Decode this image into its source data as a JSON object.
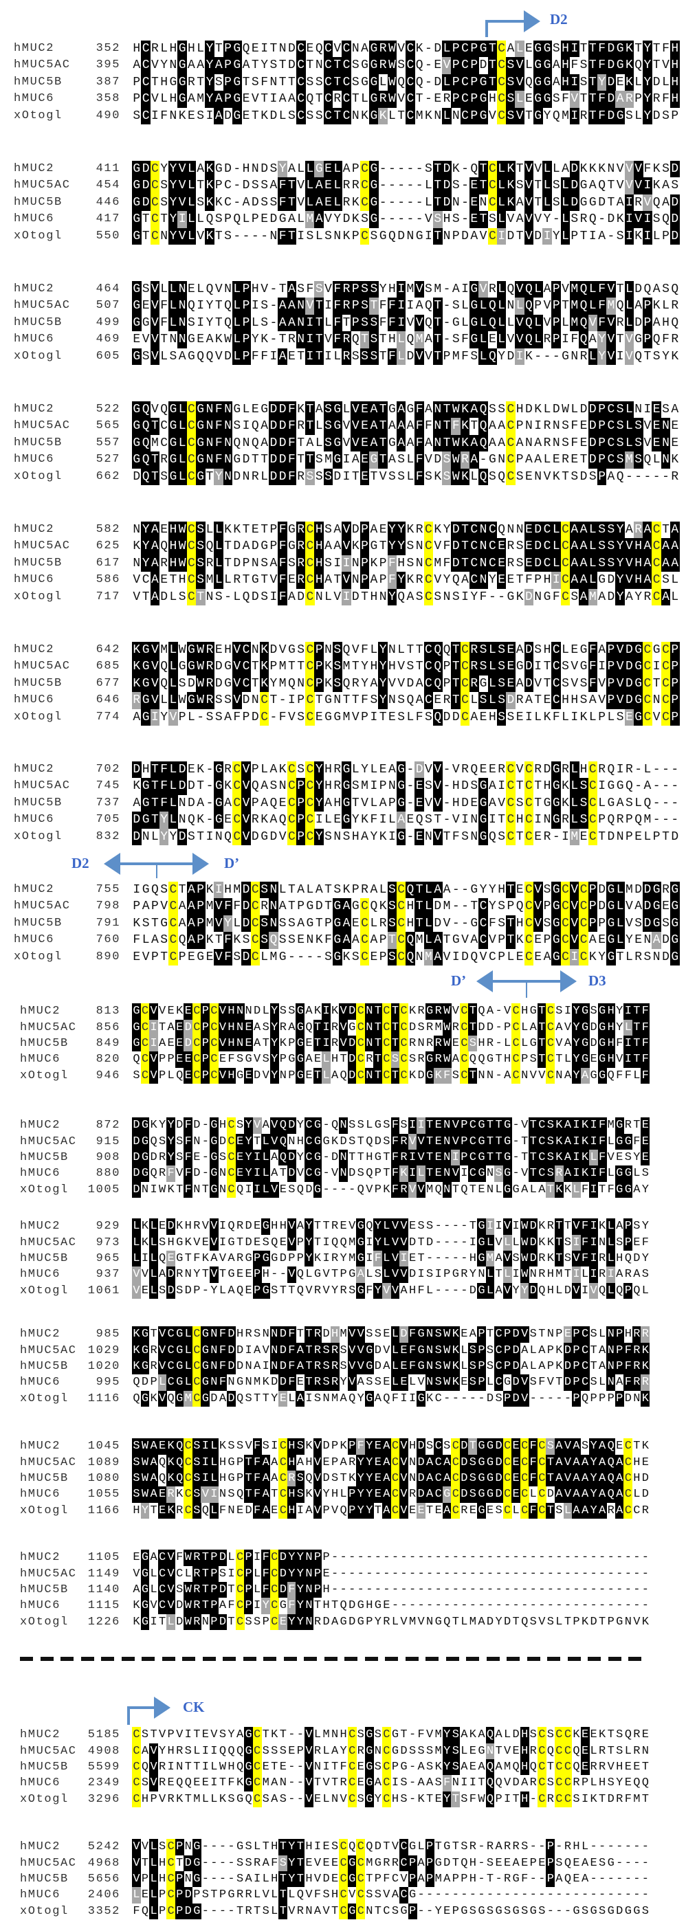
{
  "colors": {
    "identical": "#000000",
    "similar": "#a6a6a6",
    "cysteine": "#ffff00",
    "annotation": "#3a66c8",
    "arrow": "#5d8fc9"
  },
  "annotations": {
    "d2_start": "D2",
    "d2_end_left": "D2",
    "dprime_start_right": "D’",
    "dprime_end_left": "D’",
    "d3_start_right": "D3",
    "ck_start": "CK"
  },
  "blocks": [
    {
      "cys": [
        40
      ],
      "rows": [
        {
          "name": "hMUC2",
          "start": "352",
          "seq": "HCRLHGHLYTPGQEITNDCEQCVCNAGRWVCK-DLPCPGTCALEGGSHITTFDGKTYTFH"
        },
        {
          "name": "hMUC5AC",
          "start": "395",
          "seq": "ACVYNGAAYAPGATYSTDCTNCTCSGGRWSCQ-EVPCPDTCSVLGGAHFSTFDGKQYTVH"
        },
        {
          "name": "hMUC5B",
          "start": "387",
          "seq": "PCTHGGRTYSPGTSFNTTCSSCTCSGGLWQCQ-DLPCPGTCSVQGGAHISTYDEKLYDLH"
        },
        {
          "name": "hMUC6",
          "start": "358",
          "seq": "PCVLHGAMYAPGEVTIAACQTCRCTLGRWVCT-ERPCPGHCSLEGGSFVTTFDARPYRFH"
        },
        {
          "name": "xOtogl",
          "start": "490",
          "seq": "SCIFNKESIADGETKDLSCSSCTCNKGKLTCMKNLNCPGVCSVTGYQMIRTFDGSLYDSP"
        }
      ]
    },
    {
      "cys": [
        2,
        25,
        39
      ],
      "rows": [
        {
          "name": "hMUC2",
          "start": "411",
          "seq": "GDCYYVLAKGD-HNDSYALLGELAPCG-----STDK-QTCLKTVVLLADKKKNVVVFKSD"
        },
        {
          "name": "hMUC5AC",
          "start": "454",
          "seq": "GDCSYVLTKPC-DSSAFTVLAELRRCG-----LTDS-ETCLKSVTLSLDGAQTVVVIKAS"
        },
        {
          "name": "hMUC5B",
          "start": "446",
          "seq": "GDCSYVLSKKC-ADSSFTVLAELRKCG-----LTDN-ENCLKAVTLSLDGGDTAIRVQAD"
        },
        {
          "name": "hMUC6",
          "start": "417",
          "seq": "GTCTYILLQSPQLPEDGALMAVYDKSG-----VSHS-ETSLVAVVY-LSRQ-DKIVISQD"
        },
        {
          "name": "xOtogl",
          "start": "550",
          "seq": "GTCNYVLVKTS----NFTISLSNKPCSGQDNGITNPDAVCIDTVDIYLPTIA-SIKILPD"
        }
      ]
    },
    {
      "cys": [],
      "rows": [
        {
          "name": "hMUC2",
          "start": "464",
          "seq": "GSVLLNELQVNLPHV-TASFSVFRPSSYHIMVSM-AIGVRLQVQLAPVMQLFVTLDQASQ"
        },
        {
          "name": "hMUC5AC",
          "start": "507",
          "seq": "GEVFLNQIYTQLPIS-AANVTIFRPSTFFIIAQT-SLGLQLNLQPVPTMQLFMQLAPKLR"
        },
        {
          "name": "hMUC5B",
          "start": "499",
          "seq": "GGVFLNSIYTQLPLS-AANITLFTPSSFFIVVQT-GLGLQLLVQLVPLMQVFVRLDPAHQ"
        },
        {
          "name": "hMUC6",
          "start": "469",
          "seq": "EVVTNNGEAKWLPYK-TRNITVFRQTSTHLQMAT-SFGLELVVQLRPIFQAYVTVGPQFR"
        },
        {
          "name": "xOtogl",
          "start": "605",
          "seq": "GSVLSAGQQVDLPFFIAETITILRSSSTFLDVVTPMFSLQYDIK---GNRLYVIVQTSYK"
        }
      ]
    },
    {
      "cys": [
        6,
        41
      ],
      "rows": [
        {
          "name": "hMUC2",
          "start": "522",
          "seq": "GQVQGLCGNFNGLEGDDFKTASGLVEATGAGFANTWKAQSSCHDKLDWLDDPCSLNIESA"
        },
        {
          "name": "hMUC5AC",
          "start": "565",
          "seq": "GQTCGLCGNFNSIQADDFRTLSGVVEATAAAFFNTFKTQAACPNIRNSFEDPCSLSVENE"
        },
        {
          "name": "hMUC5B",
          "start": "557",
          "seq": "GQMCGLCGNFNQNQADDFTALSGVVEATGAAFANTWKAQAACANARNSFEDPCSLSVENE"
        },
        {
          "name": "hMUC6",
          "start": "527",
          "seq": "GQTRGLCGNFNGDTTDDFTTSMGIAEGTASLFVDSWRA-GNCPAALERETDPCSMSQLNK"
        },
        {
          "name": "xOtogl",
          "start": "662",
          "seq": "DQTSGLCGTYNDNRLDDFRSSSDITETVSSLFSKSWKLQSQCSENVKTSDSPAQ-----R"
        }
      ]
    },
    {
      "cys": [
        6,
        19,
        32,
        47,
        57
      ],
      "rows": [
        {
          "name": "hMUC2",
          "start": "582",
          "seq": "NYAEHWCSLLKKTETPFGRCHSAVDPAEYYKRCKYDTCNCQNNEDCLCAALSSYARACTA"
        },
        {
          "name": "hMUC5AC",
          "start": "625",
          "seq": "KYAQHWCSQLTDADGPFGRCHAAVKPGTYYSNCVFDTCNCERSEDCLCAALSSYVHACAA"
        },
        {
          "name": "hMUC5B",
          "start": "617",
          "seq": "NYARHWCSRLTDPNSAFSRCHSIINPKPFHSNCMFDTCNCERSEDCLCAALSSYVHACAA"
        },
        {
          "name": "hMUC6",
          "start": "586",
          "seq": "VCAETHCSMLLRTGTVFERCHATVNPAPFYKRCVYQACNYEETFPHICAALGDYVHACSL"
        },
        {
          "name": "xOtogl",
          "start": "717",
          "seq": "VTADLSCTNS-LQDSIFADCNLVIDTHNYQASCSNSIYF--GKDNGFCSAMADYAYRCAL"
        }
      ]
    },
    {
      "cys": [
        14,
        19,
        36,
        56,
        58
      ],
      "rows": [
        {
          "name": "hMUC2",
          "start": "642",
          "seq": "KGVMLWGWREHVCNKDVGSCPNSQVFLYNLTTCQQTCRSLSEADSHCLEGFAPVDGCGCP"
        },
        {
          "name": "hMUC5AC",
          "start": "685",
          "seq": "KGVQLGGWRDGVCTKPMTTCPKSMTYHYHVSTCQPTCRSLSEGDITCSVGFIPVDGCICP"
        },
        {
          "name": "hMUC5B",
          "start": "677",
          "seq": "KGVQLSDWRDGVCTKYMQNCPKSQRYAYVVDACQPTCRGLSEADVTCSVSFVPVDGCTCP"
        },
        {
          "name": "hMUC6",
          "start": "646",
          "seq": "RGVLLWGWRSSVDNCT-IPCTGNTTFSYNSQACERTCLSLSDRATECHHSAVPVDGCNCP"
        },
        {
          "name": "xOtogl",
          "start": "774",
          "seq": "AGIYVPL-SSAFPDC-FVSCEGGMVPITESLFSQDDCAEHSSEILKFLIKLPLSEGCVCP"
        }
      ]
    },
    {
      "cys": [
        11,
        17,
        19,
        41,
        43,
        50
      ],
      "rows": [
        {
          "name": "hMUC2",
          "start": "702",
          "seq": "DHTFLDEK-GRCVPLAKCSCYHRGLYLEAG-DVV-VRQEERCVCRDGRLHCRQIR-L---"
        },
        {
          "name": "hMUC5AC",
          "start": "745",
          "seq": "KGTFLDDT-GKCVQASNCPCYHRGSMIPNG-ESV-HDSGAICTCTHGKLSCIGGQ-A---"
        },
        {
          "name": "hMUC5B",
          "start": "737",
          "seq": "AGTFLNDA-GACVPAQECPCYAHGTVLAPG-EVV-HDEGAVCSCTGGKLSCLGASLQ---"
        },
        {
          "name": "hMUC6",
          "start": "705",
          "seq": "DGTYLNQK-GECVRKAQCPCILEGYKFILAEQST-VINGITCHCINGRLSCPQRPQM---"
        },
        {
          "name": "xOtogl",
          "start": "832",
          "seq": "DNLYYDSTINQCVDGDVCPCYSNSHAYKIG-ENVTFSNGQSCTCER-IMECTDNPELPTD"
        }
      ]
    },
    {
      "cys": [
        4,
        13,
        25,
        29,
        43,
        47,
        49
      ],
      "rows": [
        {
          "name": "hMUC2",
          "start": "755",
          "seq": "IGQSCTAPKIHMDCSNLTALATSKPRALSCQTLAA--GYYHTECVSGCVCPDGLMDDGRG"
        },
        {
          "name": "hMUC5AC",
          "start": "798",
          "seq": "PAPVCAAPMVFFDCRNATPGDTGAGCQKSCHTLDM--TCYSPQCVPGCVCPDGLVADGEG"
        },
        {
          "name": "hMUC5B",
          "start": "791",
          "seq": "KSTGCAAPMVYLDCSNSSAGTPGAECLRSCHTLDV--GCFSTHCVSGCVCPPGLVSDGSG"
        },
        {
          "name": "hMUC6",
          "start": "760",
          "seq": "FLASCQAPKTFKSCSQSSENKFGAACAPTCQMLATGVACVPTKCEPGCVCAEGLYENADG"
        },
        {
          "name": "xOtogl",
          "start": "890",
          "seq": "EVPTCPEGEVFSDCLMG----SGKSCEPSCQNMAVIDQVCPLECEAGCICKYGTLRSNDG"
        }
      ]
    },
    {
      "cys": [
        1,
        7,
        9,
        26,
        29,
        31,
        38,
        44,
        48
      ],
      "rows": [
        {
          "name": "hMUC2",
          "start": "813",
          "seq": "GCVVEKECPCVHNNDLYSSGAKIKVDCNTCTCKRGRWVCTQA-VCHGTCSIYGSGHYITF"
        },
        {
          "name": "hMUC5AC",
          "start": "856",
          "seq": "GCITAEDCPCVHNEASYRAGQTIRVGCNTCTCDSRMWRCTDD-PCLATCAVYGDGHYLTF"
        },
        {
          "name": "hMUC5B",
          "start": "849",
          "seq": "GCIAEEDCPCVHNEATYKPGETIRVDCNTCTCRNRRWECSHR-LCLGTCVAYGDGHFITF"
        },
        {
          "name": "hMUC6",
          "start": "820",
          "seq": "QCVPPEECPCEFSGVSYPGGAELHTDCRTCSCSRGRWACQQGTHCPSTCTLYGEGHVITF"
        },
        {
          "name": "xOtogl",
          "start": "946",
          "seq": "SCVPLQECPCVHGEDVYNPGETLAQDCNTCTCKDGKFSCTNN-ACNVVCNAYAGGQFFLF"
        }
      ]
    },
    {
      "cys": [
        11
      ],
      "rows": [
        {
          "name": "hMUC2",
          "start": "872",
          "seq": "DGKYYDFD-GHCSYVAVQDYCG-QNSSLGSFSIITENVPCGTTG-VTCSKAIKIFMGRTE"
        },
        {
          "name": "hMUC5AC",
          "start": "915",
          "seq": "DGQSYSFN-GDCEYTLVQNHCGGKDSTQDSFRVVTENVPCGTTG-TTCSKAIKIFLGGFE"
        },
        {
          "name": "hMUC5B",
          "start": "908",
          "seq": "DGDRYSFE-GSCEYILAQDYCG-DNTTHGTFRIVTENIPCGTTG-TTCSKAIKLFVESYE"
        },
        {
          "name": "hMUC6",
          "start": "880",
          "seq": "DGQRFVFD-GNCEYILATDVCG-VNDSQPTFKILTENVICGNSG-VTCSRAIKIFLGGLS"
        },
        {
          "name": "xOtogl",
          "start": "1005",
          "seq": "DNIWKTFNTGNCQIILVESQDG----QVPKFRVVMQNTQTENLGGALATKKLFITFGGAY"
        }
      ]
    },
    {
      "cys": [],
      "rows": [
        {
          "name": "hMUC2",
          "start": "929",
          "seq": "LKLEDKHRVVIQRDEGHHVAYTTREVGQYLVVESS----TGIIVIWDKRTTVFIKLAPSY"
        },
        {
          "name": "hMUC5AC",
          "start": "973",
          "seq": "LKLSHGKVEVIGTDESQEVPYTIQQMGIYLVVDTD----IGLVLLWDKKTSIFINLSPEF"
        },
        {
          "name": "hMUC5B",
          "start": "965",
          "seq": "LILQEGTFKAVARGPGGDPPYKIRYMGIFLVIET-----HGMAVSWDRKTSVFIRLHQDY"
        },
        {
          "name": "hMUC6",
          "start": "937",
          "seq": "VVLADRNYTVTGEEPH--VQLGVTPGALSLVVDISIPGRYNLTLIWNRHMTILIRIARAS"
        },
        {
          "name": "xOtogl",
          "start": "1061",
          "seq": "VELSDSDP-YLAQEPGSTTQVRVYRSGFYVVAHFL----DGLAVYYDQHLDVIVQLQPQL"
        }
      ]
    },
    {
      "cys": [
        7
      ],
      "rows": [
        {
          "name": "hMUC2",
          "start": "985",
          "seq": "KGTVCGLCGNFDHRSNNDFTTRDHMVVSSELDFGNSWKEAPTCPDVSTNPEPCSLNPHRR"
        },
        {
          "name": "hMUC5AC",
          "start": "1029",
          "seq": "KGRVCGLCGNFDDIAVNDFATRSRSVVGDVLEFGNSWKLSPSCPDALAPKDPCTANPFRK"
        },
        {
          "name": "hMUC5B",
          "start": "1020",
          "seq": "KGRVCGLCGNFDDNAINDFATRSRSVVGDALEFGNSWKLSPSCPDALAPKDPCTANPFRK"
        },
        {
          "name": "hMUC6",
          "start": "995",
          "seq": "QDPLCGLCGNFNGNMKDDFETRSRYVASSELELVNSWKESPLCGDVSFVTDPCSLNAFRR"
        },
        {
          "name": "xOtogl",
          "start": "1116",
          "seq": "QGKVQGMCGDADQSTTYELAISNMAQYGAQFIIGKC-----DSPDV-----PQPPPPDNK"
        }
      ]
    },
    {
      "cys": [
        6,
        17,
        30,
        37,
        43,
        45,
        47,
        57
      ],
      "rows": [
        {
          "name": "hMUC2",
          "start": "1045",
          "seq": "SWAEKQCSILKSSVFSICHSKVDPKPFYEACVHDSCSCDTGGDCECFCSAVASYAQECTK"
        },
        {
          "name": "hMUC5AC",
          "start": "1089",
          "seq": "SWAQKQCSILHGPTFAACHAHVEPARYYEACVNDACACDSGGDCECFCTAVAAYAQACHE"
        },
        {
          "name": "hMUC5B",
          "start": "1080",
          "seq": "SWAQKQCSILHGPTFAACRSQVDSTKYYEACVNDACACDSGGDCECFCTAVAAYAQACHD"
        },
        {
          "name": "hMUC6",
          "start": "1055",
          "seq": "SWAERKCSVINSQTFATCHSKVYHLPYYEACVRDACGCDSGGDCECLCDAVAAYAQACLD"
        },
        {
          "name": "xOtogl",
          "start": "1166",
          "seq": "HYTEKRCSQLFNEDFAECHIAVPVQPYYTACVEETEACREGESCLCFCTSLAAYARACCR"
        }
      ]
    },
    {
      "cys": [
        12,
        16
      ],
      "rows": [
        {
          "name": "hMUC2",
          "start": "1105",
          "seq": "EGACVFWRTPDLCPIFCDYYNPP-------------------------------------"
        },
        {
          "name": "hMUC5AC",
          "start": "1149",
          "seq": "VGLCVCLRTPSICPLFCDYYNPE-------------------------------------"
        },
        {
          "name": "hMUC5B",
          "start": "1140",
          "seq": "AGLCVSWRTPDTCPLFCDFYNPH-------------------------------------"
        },
        {
          "name": "hMUC6",
          "start": "1115",
          "seq": "KGVCVDWRTPAFCPIYCGFYNTHTQDGHGE------------------------------"
        },
        {
          "name": "xOtogl",
          "start": "1226",
          "seq": "KGITLDWRNPDTCSSPCEYYNRDAGDGPYRLVMVNGQTLMADYDTQSVSLTPKDTPGNVK"
        }
      ]
    },
    {
      "cys": [
        0,
        14,
        25,
        29,
        47,
        49,
        50
      ],
      "rows": [
        {
          "name": "hMUC2",
          "start": "5185",
          "seq": "CSTVPVITEVSYAGCTKT--VLMNHCSGSCGT-FVMYSAKAQALDHSCSCCKEEKTSQRE"
        },
        {
          "name": "hMUC5AC",
          "start": "4908",
          "seq": "CAVYHRSLIIQQQGCSSSEPVRLAYCRGNCGDSSSMYSLEGNTVEHRCQCCQELRTSLRN"
        },
        {
          "name": "hMUC5B",
          "start": "5599",
          "seq": "CQVRINTTILWHQGCETE--VNITFCEGSCPG-ASKYSAEAQAMQHQCTCCQERRVHEET"
        },
        {
          "name": "hMUC6",
          "start": "2349",
          "seq": "CSVREQQEEITFKGCMAN--VTVTRCEGACIS-AASFNIITQQVDARCSCCRPLHSYEQQ"
        },
        {
          "name": "xOtogl",
          "start": "3296",
          "seq": "CHPVRKTMLLKSGQCSAS--VELNVCSGYCHS-KTEYTSFWQPITH-CRCCSIKTDRFMT"
        }
      ]
    },
    {
      "cys": [
        4,
        24,
        26
      ],
      "rows": [
        {
          "name": "hMUC2",
          "start": "5242",
          "seq": "VVLSCPNG----GSLTHTYTHIESCQCQDTVCGLPTGTSR-RARRS--P-RHL-------"
        },
        {
          "name": "hMUC5AC",
          "start": "4968",
          "seq": "VTLHCTDG----SSRAFSYTEVEECGCMGRRCPAPGDTQH-SEEAEPEPSQEAESG----"
        },
        {
          "name": "hMUC5B",
          "start": "5656",
          "seq": "VPLHCPNG----SAILHTYTHVDECGCTPFCVPAPMAPPH-T-RGF--PAQEA-------"
        },
        {
          "name": "hMUC6",
          "start": "2406",
          "seq": "LELPCPDPSTPGRRLVLTLQVFSHCVCSSVACG---------------------------"
        },
        {
          "name": "xOtogl",
          "start": "3352",
          "seq": "FQLPCPDG----TRTSLTVRNAVTCGCNTCSGP--YEPGSGSGSGSGS---GSGSGDGGS"
        }
      ]
    }
  ]
}
